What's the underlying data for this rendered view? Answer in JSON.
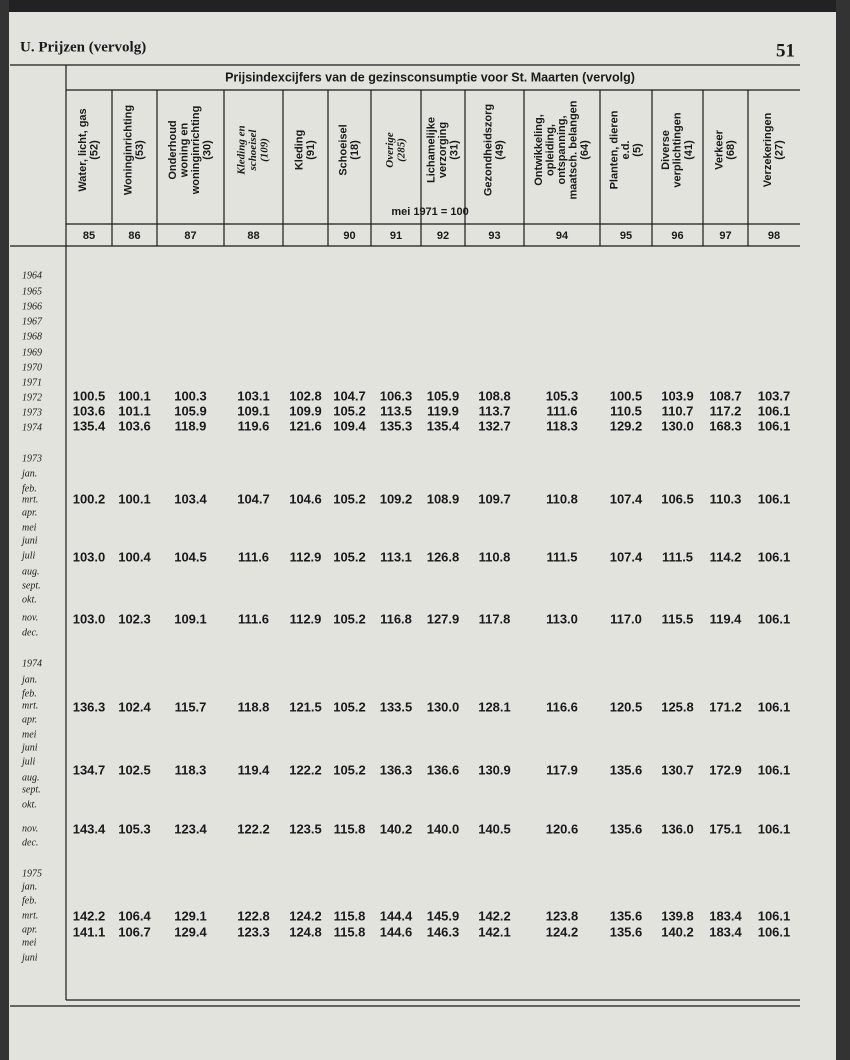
{
  "header": {
    "section": "U. Prijzen (vervolg)",
    "page": "51"
  },
  "table": {
    "title": "Prijsindexcijfers van de gezinsconsumptie voor St. Maarten (vervolg)",
    "base": "mei 1971 = 100",
    "columns": [
      {
        "label": [
          "Water, licht, gas",
          "(52)"
        ],
        "number": "85"
      },
      {
        "label": [
          "Woninginrichting",
          "(53)"
        ],
        "number": "86"
      },
      {
        "label": [
          "Onderhoud",
          "woning en",
          "woninginrichting",
          "(30)"
        ],
        "number": "87"
      },
      {
        "label": [
          "Kleding en",
          "schoeisel",
          "(109)"
        ],
        "number": "88",
        "italic": true
      },
      {
        "label": [
          "Kleding",
          "(91)"
        ],
        "number": null
      },
      {
        "label": [
          "Schoeisel",
          "(18)"
        ],
        "number": "90"
      },
      {
        "label": [
          "Overige",
          "(285)"
        ],
        "number": "91",
        "italic": true
      },
      {
        "label": [
          "Lichamelijke",
          "verzorging",
          "(31)"
        ],
        "number": "92"
      },
      {
        "label": [
          "Gezondheidszorg",
          "(49)"
        ],
        "number": "93"
      },
      {
        "label": [
          "Ontwikkeling,",
          "opleiding,",
          "ontspanning,",
          "maatsch. belangen",
          "(64)"
        ],
        "number": "94"
      },
      {
        "label": [
          "Planten, dieren",
          "e.d.",
          "(5)"
        ],
        "number": "95"
      },
      {
        "label": [
          "Diverse",
          "verplichtingen",
          "(41)"
        ],
        "number": "96"
      },
      {
        "label": [
          "Verkeer",
          "(68)"
        ],
        "number": "97"
      },
      {
        "label": [
          "Verzekeringen",
          "(27)"
        ],
        "number": "98"
      }
    ],
    "stub": [
      "1964",
      "1965",
      "1966",
      "1967",
      "1968",
      "1969",
      "1970",
      "1971",
      "1972",
      "1973",
      "1974",
      "1973",
      "jan.",
      "feb.",
      "mrt.",
      "apr.",
      "mei",
      "juni",
      "juli",
      "aug.",
      "sept.",
      "okt.",
      "nov.",
      "dec.",
      "1974",
      "jan.",
      "feb.",
      "mrt.",
      "apr.",
      "mei",
      "juni",
      "juli",
      "aug.",
      "sept.",
      "okt.",
      "nov.",
      "dec.",
      "1975",
      "jan.",
      "feb.",
      "mrt.",
      "apr.",
      "mei",
      "juni"
    ],
    "rows": [
      [
        "100.5",
        "100.1",
        "100.3",
        "103.1",
        "102.8",
        "104.7",
        "106.3",
        "105.9",
        "108.8",
        "105.3",
        "100.5",
        "103.9",
        "108.7",
        "103.7"
      ],
      [
        "103.6",
        "101.1",
        "105.9",
        "109.1",
        "109.9",
        "105.2",
        "113.5",
        "119.9",
        "113.7",
        "111.6",
        "110.5",
        "110.7",
        "117.2",
        "106.1"
      ],
      [
        "135.4",
        "103.6",
        "118.9",
        "119.6",
        "121.6",
        "109.4",
        "135.3",
        "135.4",
        "132.7",
        "118.3",
        "129.2",
        "130.0",
        "168.3",
        "106.1"
      ],
      [
        "100.2",
        "100.1",
        "103.4",
        "104.7",
        "104.6",
        "105.2",
        "109.2",
        "108.9",
        "109.7",
        "110.8",
        "107.4",
        "106.5",
        "110.3",
        "106.1"
      ],
      [
        "103.0",
        "100.4",
        "104.5",
        "111.6",
        "112.9",
        "105.2",
        "113.1",
        "126.8",
        "110.8",
        "111.5",
        "107.4",
        "111.5",
        "114.2",
        "106.1"
      ],
      [
        "103.0",
        "102.3",
        "109.1",
        "111.6",
        "112.9",
        "105.2",
        "116.8",
        "127.9",
        "117.8",
        "113.0",
        "117.0",
        "115.5",
        "119.4",
        "106.1"
      ],
      [
        "136.3",
        "102.4",
        "115.7",
        "118.8",
        "121.5",
        "105.2",
        "133.5",
        "130.0",
        "128.1",
        "116.6",
        "120.5",
        "125.8",
        "171.2",
        "106.1"
      ],
      [
        "134.7",
        "102.5",
        "118.3",
        "119.4",
        "122.2",
        "105.2",
        "136.3",
        "136.6",
        "130.9",
        "117.9",
        "135.6",
        "130.7",
        "172.9",
        "106.1"
      ],
      [
        "143.4",
        "105.3",
        "123.4",
        "122.2",
        "123.5",
        "115.8",
        "140.2",
        "140.0",
        "140.5",
        "120.6",
        "135.6",
        "136.0",
        "175.1",
        "106.1"
      ],
      [
        "142.2",
        "106.4",
        "129.1",
        "122.8",
        "124.2",
        "115.8",
        "144.4",
        "145.9",
        "142.2",
        "123.8",
        "135.6",
        "139.8",
        "183.4",
        "106.1"
      ],
      [
        "141.1",
        "106.7",
        "129.4",
        "123.3",
        "124.8",
        "115.8",
        "144.6",
        "146.3",
        "142.1",
        "124.2",
        "135.6",
        "140.2",
        "183.4",
        "106.1"
      ]
    ]
  }
}
